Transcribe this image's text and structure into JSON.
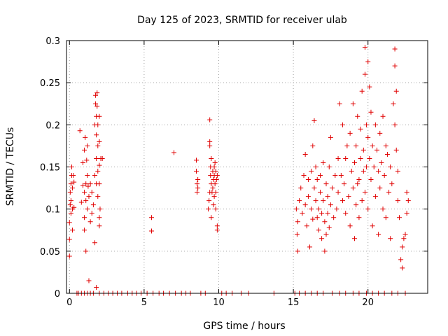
{
  "chart_data": {
    "type": "scatter",
    "title": "Day 125 of 2023, SRMTID for receiver ulab",
    "xlabel": "GPS time / hours",
    "ylabel": "SRMTID / TECUs",
    "xlim": [
      -0.2,
      24.0
    ],
    "ylim": [
      0,
      0.3
    ],
    "x_ticks": [
      0,
      5,
      10,
      15,
      20
    ],
    "x_tick_labels": [
      "0",
      "5",
      "10",
      "15",
      "20"
    ],
    "y_ticks": [
      0,
      0.05,
      0.1,
      0.15,
      0.2,
      0.25,
      0.3
    ],
    "y_tick_labels": [
      "0",
      "0.05",
      "0.1",
      "0.15",
      "0.2",
      "0.25",
      "0.3"
    ],
    "grid": true,
    "marker": "plus",
    "color": "#e00000",
    "series": [
      {
        "name": "SRMTID",
        "points": [
          [
            0.0,
            0.044
          ],
          [
            0.0,
            0.064
          ],
          [
            0.0,
            0.084
          ],
          [
            0.05,
            0.105
          ],
          [
            0.05,
            0.12
          ],
          [
            0.1,
            0.095
          ],
          [
            0.1,
            0.13
          ],
          [
            0.1,
            0.11
          ],
          [
            0.15,
            0.15
          ],
          [
            0.15,
            0.14
          ],
          [
            0.2,
            0.1
          ],
          [
            0.2,
            0.125
          ],
          [
            0.2,
            0.075
          ],
          [
            0.25,
            0.14
          ],
          [
            0.3,
            0.102
          ],
          [
            0.3,
            0.132
          ],
          [
            0.7,
            0.193
          ],
          [
            0.8,
            0.108
          ],
          [
            0.9,
            0.128
          ],
          [
            0.9,
            0.155
          ],
          [
            1.0,
            0.17
          ],
          [
            1.0,
            0.12
          ],
          [
            1.0,
            0.09
          ],
          [
            1.0,
            0.075
          ],
          [
            1.05,
            0.185
          ],
          [
            1.1,
            0.13
          ],
          [
            1.1,
            0.11
          ],
          [
            1.1,
            0.05
          ],
          [
            1.15,
            0.158
          ],
          [
            1.2,
            0.1
          ],
          [
            1.2,
            0.14
          ],
          [
            1.2,
            0.175
          ],
          [
            1.25,
            0.127
          ],
          [
            1.3,
            0.015
          ],
          [
            1.3,
            0.115
          ],
          [
            1.4,
            0.085
          ],
          [
            1.4,
            0.13
          ],
          [
            1.5,
            0.095
          ],
          [
            1.5,
            0.12
          ],
          [
            1.6,
            0.105
          ],
          [
            1.7,
            0.06
          ],
          [
            1.7,
            0.2
          ],
          [
            1.7,
            0.14
          ],
          [
            1.75,
            0.235
          ],
          [
            1.75,
            0.225
          ],
          [
            1.8,
            0.21
          ],
          [
            1.8,
            0.188
          ],
          [
            1.8,
            0.16
          ],
          [
            1.8,
            0.13
          ],
          [
            1.8,
            0.007
          ],
          [
            1.85,
            0.238
          ],
          [
            1.85,
            0.222
          ],
          [
            1.9,
            0.2
          ],
          [
            1.9,
            0.175
          ],
          [
            1.9,
            0.145
          ],
          [
            1.9,
            0.115
          ],
          [
            2.0,
            0.21
          ],
          [
            2.0,
            0.18
          ],
          [
            2.0,
            0.152
          ],
          [
            2.0,
            0.13
          ],
          [
            2.0,
            0.09
          ],
          [
            2.0,
            0.08
          ],
          [
            2.05,
            0.1
          ],
          [
            2.1,
            0.16
          ],
          [
            2.2,
            0.16
          ],
          [
            5.5,
            0.09
          ],
          [
            5.5,
            0.074
          ],
          [
            7.0,
            0.167
          ],
          [
            8.5,
            0.158
          ],
          [
            8.5,
            0.145
          ],
          [
            8.55,
            0.13
          ],
          [
            8.55,
            0.12
          ],
          [
            8.6,
            0.135
          ],
          [
            8.6,
            0.125
          ],
          [
            9.3,
            0.1
          ],
          [
            9.35,
            0.11
          ],
          [
            9.4,
            0.206
          ],
          [
            9.4,
            0.18
          ],
          [
            9.4,
            0.175
          ],
          [
            9.4,
            0.12
          ],
          [
            9.45,
            0.15
          ],
          [
            9.45,
            0.14
          ],
          [
            9.5,
            0.13
          ],
          [
            9.5,
            0.16
          ],
          [
            9.5,
            0.09
          ],
          [
            9.55,
            0.12
          ],
          [
            9.6,
            0.145
          ],
          [
            9.6,
            0.125
          ],
          [
            9.65,
            0.135
          ],
          [
            9.65,
            0.105
          ],
          [
            9.7,
            0.15
          ],
          [
            9.7,
            0.14
          ],
          [
            9.7,
            0.115
          ],
          [
            9.75,
            0.155
          ],
          [
            9.75,
            0.13
          ],
          [
            9.8,
            0.12
          ],
          [
            9.8,
            0.145
          ],
          [
            9.8,
            0.1
          ],
          [
            9.85,
            0.135
          ],
          [
            9.9,
            0.08
          ],
          [
            9.9,
            0.075
          ],
          [
            9.9,
            0.14
          ],
          [
            15.2,
            0.1
          ],
          [
            15.25,
            0.07
          ],
          [
            15.3,
            0.05
          ],
          [
            15.3,
            0.085
          ],
          [
            15.4,
            0.11
          ],
          [
            15.5,
            0.125
          ],
          [
            15.6,
            0.095
          ],
          [
            15.7,
            0.14
          ],
          [
            15.8,
            0.165
          ],
          [
            15.8,
            0.105
          ],
          [
            15.9,
            0.08
          ],
          [
            16.0,
            0.135
          ],
          [
            16.0,
            0.115
          ],
          [
            16.1,
            0.055
          ],
          [
            16.2,
            0.145
          ],
          [
            16.2,
            0.1
          ],
          [
            16.3,
            0.175
          ],
          [
            16.3,
            0.088
          ],
          [
            16.4,
            0.205
          ],
          [
            16.4,
            0.125
          ],
          [
            16.5,
            0.15
          ],
          [
            16.5,
            0.11
          ],
          [
            16.6,
            0.09
          ],
          [
            16.6,
            0.135
          ],
          [
            16.7,
            0.075
          ],
          [
            16.7,
            0.1
          ],
          [
            16.8,
            0.14
          ],
          [
            16.8,
            0.12
          ],
          [
            16.9,
            0.065
          ],
          [
            16.9,
            0.095
          ],
          [
            17.0,
            0.155
          ],
          [
            17.0,
            0.11
          ],
          [
            17.1,
            0.05
          ],
          [
            17.1,
            0.085
          ],
          [
            17.2,
            0.13
          ],
          [
            17.2,
            0.07
          ],
          [
            17.3,
            0.115
          ],
          [
            17.3,
            0.095
          ],
          [
            17.4,
            0.15
          ],
          [
            17.4,
            0.078
          ],
          [
            17.5,
            0.105
          ],
          [
            17.5,
            0.185
          ],
          [
            17.6,
            0.125
          ],
          [
            17.7,
            0.09
          ],
          [
            17.8,
            0.14
          ],
          [
            17.9,
            0.1
          ],
          [
            18.0,
            0.16
          ],
          [
            18.0,
            0.12
          ],
          [
            18.1,
            0.225
          ],
          [
            18.2,
            0.14
          ],
          [
            18.3,
            0.2
          ],
          [
            18.3,
            0.11
          ],
          [
            18.4,
            0.13
          ],
          [
            18.5,
            0.16
          ],
          [
            18.5,
            0.095
          ],
          [
            18.6,
            0.175
          ],
          [
            18.7,
            0.115
          ],
          [
            18.8,
            0.19
          ],
          [
            18.8,
            0.08
          ],
          [
            18.9,
            0.145
          ],
          [
            19.0,
            0.225
          ],
          [
            19.0,
            0.125
          ],
          [
            19.1,
            0.155
          ],
          [
            19.1,
            0.065
          ],
          [
            19.2,
            0.175
          ],
          [
            19.2,
            0.105
          ],
          [
            19.3,
            0.21
          ],
          [
            19.3,
            0.13
          ],
          [
            19.4,
            0.135
          ],
          [
            19.4,
            0.09
          ],
          [
            19.5,
            0.195
          ],
          [
            19.5,
            0.16
          ],
          [
            19.6,
            0.24
          ],
          [
            19.6,
            0.11
          ],
          [
            19.7,
            0.17
          ],
          [
            19.7,
            0.145
          ],
          [
            19.8,
            0.292
          ],
          [
            19.8,
            0.26
          ],
          [
            19.8,
            0.12
          ],
          [
            19.9,
            0.2
          ],
          [
            19.9,
            0.15
          ],
          [
            20.0,
            0.275
          ],
          [
            20.0,
            0.185
          ],
          [
            20.0,
            0.1
          ],
          [
            20.1,
            0.16
          ],
          [
            20.1,
            0.245
          ],
          [
            20.2,
            0.135
          ],
          [
            20.2,
            0.215
          ],
          [
            20.3,
            0.175
          ],
          [
            20.3,
            0.08
          ],
          [
            20.4,
            0.15
          ],
          [
            20.5,
            0.2
          ],
          [
            20.5,
            0.115
          ],
          [
            20.6,
            0.17
          ],
          [
            20.7,
            0.145
          ],
          [
            20.7,
            0.07
          ],
          [
            20.8,
            0.19
          ],
          [
            20.8,
            0.125
          ],
          [
            20.9,
            0.155
          ],
          [
            21.0,
            0.21
          ],
          [
            21.0,
            0.1
          ],
          [
            21.1,
            0.14
          ],
          [
            21.2,
            0.175
          ],
          [
            21.2,
            0.09
          ],
          [
            21.3,
            0.165
          ],
          [
            21.4,
            0.12
          ],
          [
            21.5,
            0.15
          ],
          [
            21.5,
            0.065
          ],
          [
            21.6,
            0.13
          ],
          [
            21.7,
            0.225
          ],
          [
            21.8,
            0.29
          ],
          [
            21.8,
            0.27
          ],
          [
            21.8,
            0.2
          ],
          [
            21.9,
            0.24
          ],
          [
            21.9,
            0.17
          ],
          [
            22.0,
            0.145
          ],
          [
            22.0,
            0.11
          ],
          [
            22.1,
            0.09
          ],
          [
            22.2,
            0.04
          ],
          [
            22.3,
            0.03
          ],
          [
            22.3,
            0.055
          ],
          [
            22.4,
            0.065
          ],
          [
            22.5,
            0.07
          ],
          [
            22.6,
            0.095
          ],
          [
            22.6,
            0.12
          ],
          [
            22.7,
            0.11
          ],
          [
            0.5,
            0
          ],
          [
            0.6,
            0
          ],
          [
            0.8,
            0
          ],
          [
            1.0,
            0
          ],
          [
            1.2,
            0
          ],
          [
            1.4,
            0
          ],
          [
            1.6,
            0
          ],
          [
            2.0,
            0
          ],
          [
            2.3,
            0
          ],
          [
            2.6,
            0
          ],
          [
            2.9,
            0
          ],
          [
            3.2,
            0
          ],
          [
            3.5,
            0
          ],
          [
            3.9,
            0
          ],
          [
            4.2,
            0
          ],
          [
            4.5,
            0
          ],
          [
            4.8,
            0
          ],
          [
            5.2,
            0
          ],
          [
            5.6,
            0
          ],
          [
            6.0,
            0
          ],
          [
            6.3,
            0
          ],
          [
            6.7,
            0
          ],
          [
            7.1,
            0
          ],
          [
            7.5,
            0
          ],
          [
            7.8,
            0
          ],
          [
            8.1,
            0
          ],
          [
            8.8,
            0
          ],
          [
            9.1,
            0
          ],
          [
            10.2,
            0
          ],
          [
            10.5,
            0
          ],
          [
            10.9,
            0
          ],
          [
            11.5,
            0
          ],
          [
            12.0,
            0
          ],
          [
            13.7,
            0
          ],
          [
            15.1,
            0
          ],
          [
            15.4,
            0
          ],
          [
            15.8,
            0
          ],
          [
            16.2,
            0
          ],
          [
            16.6,
            0
          ],
          [
            17.0,
            0
          ],
          [
            17.6,
            0
          ],
          [
            18.1,
            0
          ],
          [
            18.5,
            0
          ],
          [
            19.0,
            0
          ],
          [
            19.4,
            0
          ],
          [
            19.9,
            0
          ],
          [
            20.3,
            0
          ],
          [
            20.7,
            0
          ],
          [
            21.1,
            0
          ],
          [
            21.6,
            0
          ],
          [
            22.0,
            0
          ],
          [
            22.5,
            0
          ]
        ]
      }
    ]
  }
}
